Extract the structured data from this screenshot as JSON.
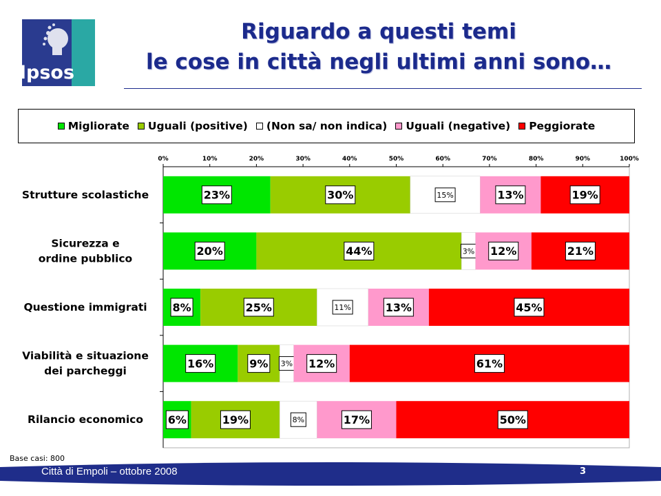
{
  "header": {
    "logo_text": "Ipsos",
    "title_line1": "Riguardo a questi temi",
    "title_line2": "le cose in città negli ultimi anni sono…"
  },
  "colors": {
    "title": "#1b2a8c",
    "logo_blue": "#2a3b8f",
    "logo_teal": "#2aa8a4",
    "footer_band": "#1f2d8a"
  },
  "chart_data": {
    "type": "bar",
    "orientation": "horizontal-stacked-100",
    "xlim": [
      0,
      100
    ],
    "x_ticks": [
      "0%",
      "10%",
      "20%",
      "30%",
      "40%",
      "50%",
      "60%",
      "70%",
      "80%",
      "90%",
      "100%"
    ],
    "legend_position": "top",
    "grid": false,
    "categories": [
      "Strutture scolastiche",
      "Sicurezza e ordine pubblico",
      "Questione immigrati",
      "Viabilità e situazione dei parcheggi",
      "Rilancio economico"
    ],
    "series": [
      {
        "name": "Migliorate",
        "color": "#00e600",
        "values": [
          23,
          20,
          8,
          16,
          6
        ]
      },
      {
        "name": "Uguali (positive)",
        "color": "#99cc00",
        "values": [
          30,
          44,
          25,
          9,
          19
        ]
      },
      {
        "name": "(Non sa/ non indica)",
        "color": "#ffffff",
        "values": [
          15,
          3,
          11,
          3,
          8
        ]
      },
      {
        "name": "Uguali (negative)",
        "color": "#ff99cc",
        "values": [
          13,
          12,
          13,
          12,
          17
        ]
      },
      {
        "name": "Peggiorate",
        "color": "#ff0000",
        "values": [
          19,
          21,
          45,
          61,
          50
        ]
      }
    ],
    "data_labels": [
      [
        "23%",
        "30%",
        "15%",
        "13%",
        "19%"
      ],
      [
        "20%",
        "44%",
        "3%",
        "12%",
        "21%"
      ],
      [
        "8%",
        "25%",
        "11%",
        "13%",
        "45%"
      ],
      [
        "16%",
        "9%",
        "3%",
        "12%",
        "61%"
      ],
      [
        "6%",
        "19%",
        "8%",
        "17%",
        "50%"
      ]
    ]
  },
  "footnote": "Base casi: 800",
  "footer": {
    "text": "Città di Empoli – ottobre 2008",
    "page_number": "3"
  }
}
